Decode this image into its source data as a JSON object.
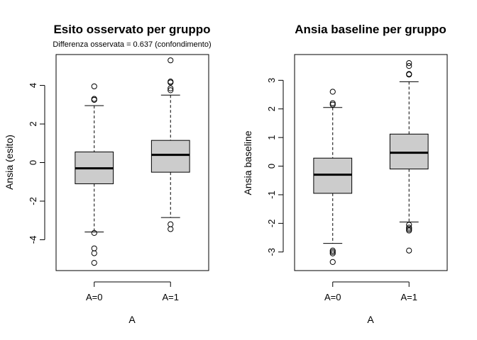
{
  "chart_data": [
    {
      "type": "box",
      "title": "Esito osservato per gruppo",
      "subtitle": "Differenza osservata = 0.637 (confondimento)",
      "xlabel": "A",
      "ylabel": "Ansia (esito)",
      "categories": [
        "A=0",
        "A=1"
      ],
      "yticks": [
        "-4",
        "-2",
        "0",
        "2",
        "4"
      ],
      "ylim": [
        -5.6,
        5.6
      ],
      "boxes": [
        {
          "name": "A=0",
          "whisker_low": -3.6,
          "q1": -1.1,
          "median": -0.3,
          "q3": 0.55,
          "whisker_high": 2.95,
          "outliers": [
            3.95,
            3.3,
            3.25,
            -3.65,
            -4.45,
            -4.7,
            -5.2
          ]
        },
        {
          "name": "A=1",
          "whisker_low": -2.85,
          "q1": -0.5,
          "median": 0.4,
          "q3": 1.15,
          "whisker_high": 3.5,
          "outliers": [
            5.3,
            4.2,
            4.15,
            3.85,
            3.75,
            -3.2,
            -3.45
          ]
        }
      ]
    },
    {
      "type": "box",
      "title": "Ansia baseline per gruppo",
      "subtitle": "",
      "xlabel": "A",
      "ylabel": "Ansia baseline",
      "categories": [
        "A=0",
        "A=1"
      ],
      "yticks": [
        "-3",
        "-2",
        "-1",
        "0",
        "1",
        "2",
        "3"
      ],
      "ylim": [
        -3.65,
        3.9
      ],
      "boxes": [
        {
          "name": "A=0",
          "whisker_low": -2.7,
          "q1": -0.95,
          "median": -0.3,
          "q3": 0.28,
          "whisker_high": 2.05,
          "outliers": [
            2.6,
            2.2,
            2.15,
            -2.95,
            -3.0,
            -3.05,
            -3.35
          ]
        },
        {
          "name": "A=1",
          "whisker_low": -1.95,
          "q1": -0.1,
          "median": 0.47,
          "q3": 1.12,
          "whisker_high": 2.95,
          "outliers": [
            3.6,
            3.5,
            3.22,
            3.2,
            -2.05,
            -2.15,
            -2.2,
            -2.25,
            -2.95
          ]
        }
      ]
    }
  ]
}
